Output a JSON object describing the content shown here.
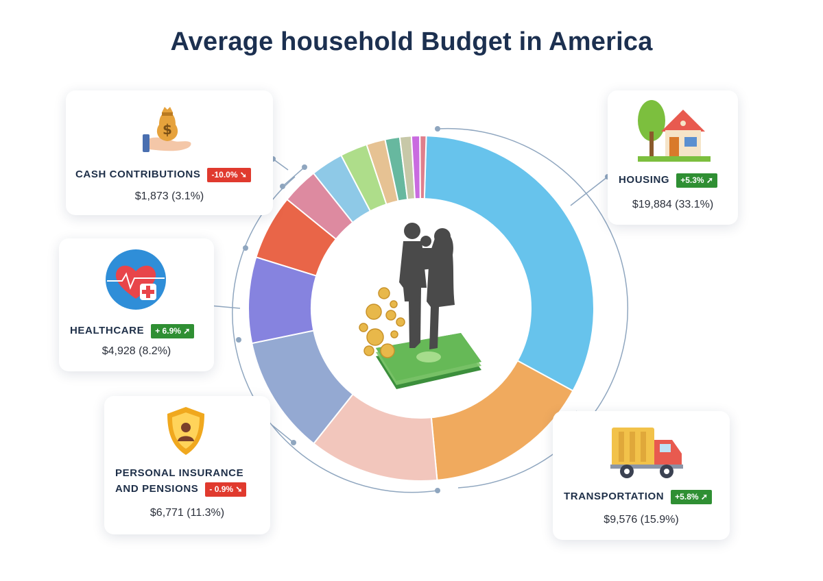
{
  "title": "Average household Budget in America",
  "colors": {
    "title": "#1c3050",
    "badge_down": "#e03a2e",
    "badge_up": "#2f8f33",
    "connector": "#8fa6bf"
  },
  "chart_data": {
    "type": "pie",
    "variant": "donut",
    "title": "Average household Budget in America",
    "slices": [
      {
        "label": "Housing",
        "value": 33.1,
        "color": "#67c3ec"
      },
      {
        "label": "Transportation",
        "value": 15.9,
        "color": "#f0aa5e"
      },
      {
        "label": "",
        "value": 12.4,
        "color": "#f2c6bc"
      },
      {
        "label": "Personal Insurance and Pensions",
        "value": 11.3,
        "color": "#94a9d2"
      },
      {
        "label": "Healthcare",
        "value": 8.2,
        "color": "#8683df"
      },
      {
        "label": "",
        "value": 6.2,
        "color": "#e96548"
      },
      {
        "label": "",
        "value": 3.5,
        "color": "#dd8aa0"
      },
      {
        "label": "Cash Contributions",
        "value": 3.1,
        "color": "#8ec9e7"
      },
      {
        "label": "",
        "value": 2.6,
        "color": "#aedd8a"
      },
      {
        "label": "",
        "value": 1.8,
        "color": "#e6c293"
      },
      {
        "label": "",
        "value": 1.4,
        "color": "#67b89f"
      },
      {
        "label": "",
        "value": 1.1,
        "color": "#c7c8a8"
      },
      {
        "label": "",
        "value": 0.8,
        "color": "#c96be0"
      },
      {
        "label": "",
        "value": 0.6,
        "color": "#e07f8c"
      }
    ]
  },
  "cards": {
    "cash": {
      "label": "CASH CONTRIBUTIONS",
      "change": "-10.0%",
      "trend": "down",
      "value": "$1,873 (3.1%)",
      "icon": "money-bag-hand-icon"
    },
    "housing": {
      "label": "HOUSING",
      "change": "+5.3%",
      "trend": "up",
      "value": "$19,884 (33.1%)",
      "icon": "house-icon"
    },
    "healthcare": {
      "label": "HEALTHCARE",
      "change": "+ 6.9%",
      "trend": "up",
      "value": "$4,928 (8.2%)",
      "icon": "heart-medical-icon"
    },
    "insurance": {
      "label_line1": "PERSONAL INSURANCE",
      "label_line2": "AND PENSIONS",
      "change": "- 0.9%",
      "trend": "down",
      "value": "$6,771 (11.3%)",
      "icon": "shield-person-icon"
    },
    "transportation": {
      "label": "TRANSPORTATION",
      "change": "+5.8%",
      "trend": "up",
      "value": "$9,576 (15.9%)",
      "icon": "truck-icon"
    }
  },
  "center_icon": "family-on-money-icon"
}
